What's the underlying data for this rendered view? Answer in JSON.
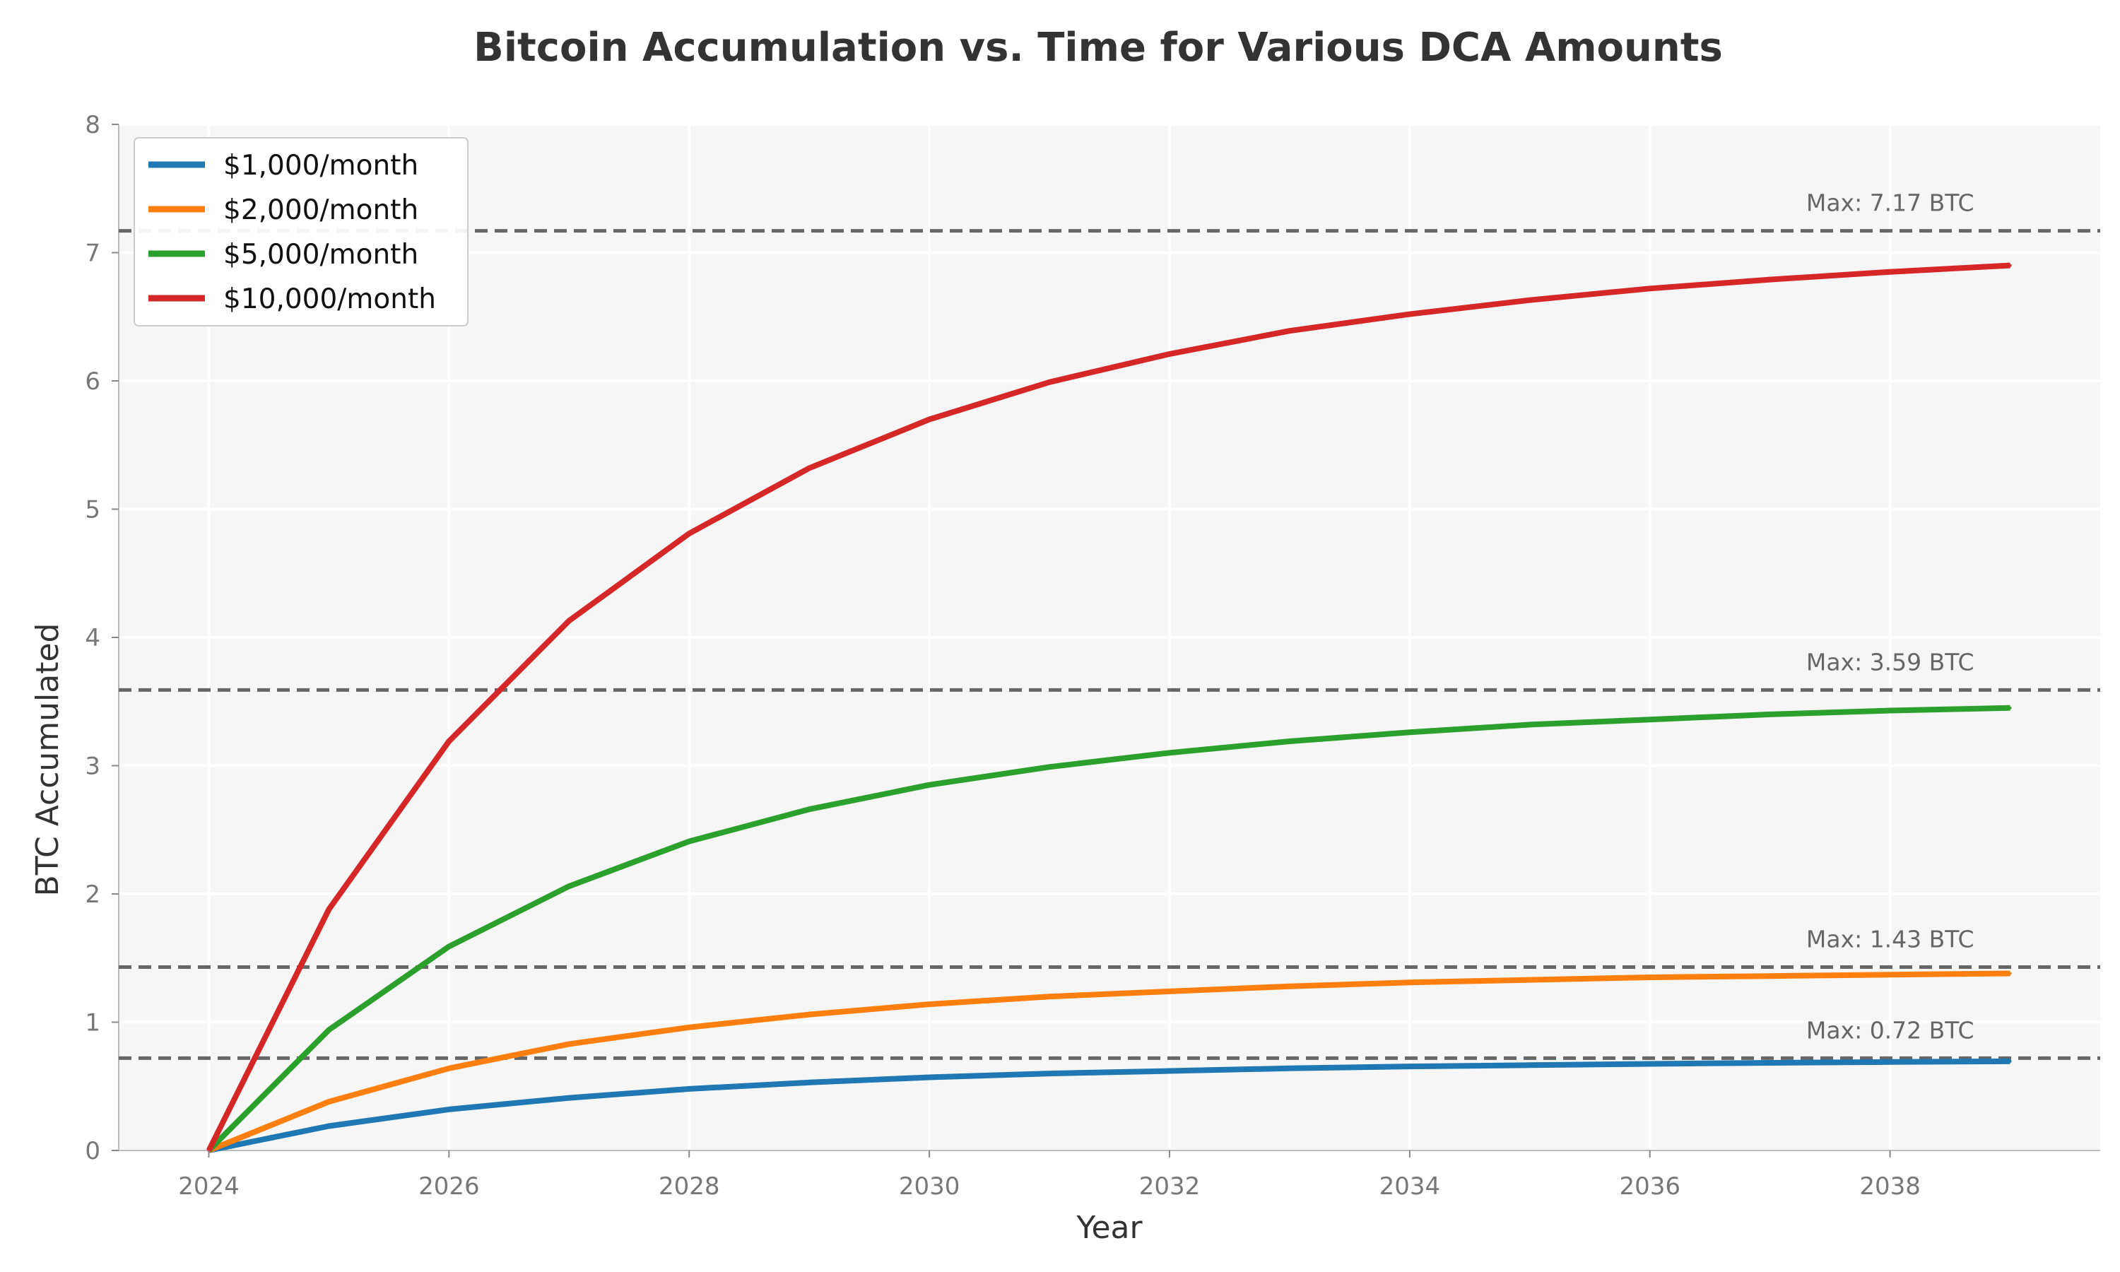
{
  "chart_data": {
    "type": "line",
    "title": "Bitcoin Accumulation vs. Time for Various DCA Amounts",
    "xlabel": "Year",
    "ylabel": "BTC Accumulated",
    "xlim": [
      2023.25,
      2039.75
    ],
    "ylim": [
      0,
      8
    ],
    "xticks": [
      2024,
      2026,
      2028,
      2030,
      2032,
      2034,
      2036,
      2038
    ],
    "yticks": [
      0,
      1,
      2,
      3,
      4,
      5,
      6,
      7,
      8
    ],
    "x": [
      2024,
      2025,
      2026,
      2027,
      2028,
      2029,
      2030,
      2031,
      2032,
      2033,
      2034,
      2035,
      2036,
      2037,
      2038,
      2039
    ],
    "grid": true,
    "legend_position": "top-left",
    "background_color": "#f6f6f6",
    "series": [
      {
        "name": "$1,000/month",
        "color": "#1f77b4",
        "values": [
          0,
          0.19,
          0.32,
          0.41,
          0.48,
          0.53,
          0.57,
          0.6,
          0.62,
          0.64,
          0.655,
          0.665,
          0.675,
          0.683,
          0.69,
          0.695
        ]
      },
      {
        "name": "$2,000/month",
        "color": "#ff7f0e",
        "values": [
          0,
          0.38,
          0.64,
          0.83,
          0.96,
          1.06,
          1.14,
          1.2,
          1.24,
          1.28,
          1.31,
          1.33,
          1.35,
          1.36,
          1.37,
          1.38
        ]
      },
      {
        "name": "$5,000/month",
        "color": "#2ca02c",
        "values": [
          0,
          0.94,
          1.59,
          2.06,
          2.41,
          2.66,
          2.85,
          2.99,
          3.1,
          3.19,
          3.26,
          3.32,
          3.36,
          3.4,
          3.43,
          3.45
        ]
      },
      {
        "name": "$10,000/month",
        "color": "#d62728",
        "values": [
          0,
          1.88,
          3.19,
          4.13,
          4.81,
          5.32,
          5.7,
          5.99,
          6.21,
          6.39,
          6.52,
          6.63,
          6.72,
          6.79,
          6.85,
          6.9
        ]
      }
    ],
    "reference_lines": [
      {
        "value": 7.17,
        "label": "Max: 7.17 BTC",
        "color": "#666666"
      },
      {
        "value": 3.59,
        "label": "Max: 3.59 BTC",
        "color": "#666666"
      },
      {
        "value": 1.43,
        "label": "Max: 1.43 BTC",
        "color": "#666666"
      },
      {
        "value": 0.72,
        "label": "Max: 0.72 BTC",
        "color": "#666666"
      }
    ]
  }
}
